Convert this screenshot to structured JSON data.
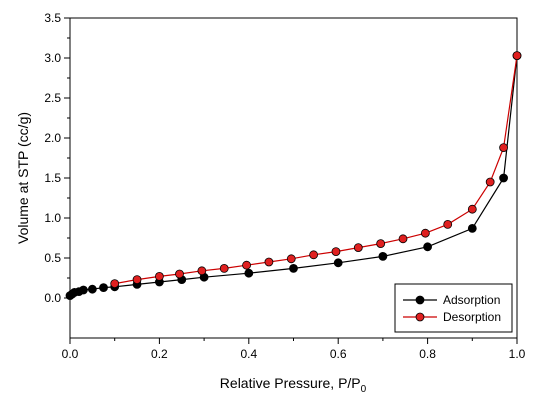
{
  "chart_data": {
    "type": "line",
    "title": "",
    "xlabel": "Relative Pressure, P/P",
    "xlabel_subscript": "0",
    "ylabel": "Volume at STP (cc/g)",
    "xlim": [
      0.0,
      1.0
    ],
    "ylim": [
      -0.5,
      3.5
    ],
    "x_ticks": [
      0.0,
      0.2,
      0.4,
      0.6,
      0.8,
      1.0
    ],
    "x_tick_labels": [
      "0.0",
      "0.2",
      "0.4",
      "0.6",
      "0.8",
      "1.0"
    ],
    "y_ticks": [
      0.0,
      0.5,
      1.0,
      1.5,
      2.0,
      2.5,
      3.0,
      3.5
    ],
    "y_tick_labels": [
      "0.0",
      "0.5",
      "1.0",
      "1.5",
      "2.0",
      "2.5",
      "3.0",
      "3.5"
    ],
    "grid": false,
    "legend_position": "bottom-right",
    "series": [
      {
        "name": "Adsorption",
        "color": "#000000",
        "marker_fill": "#000000",
        "x": [
          0.0,
          0.005,
          0.01,
          0.02,
          0.03,
          0.05,
          0.075,
          0.1,
          0.15,
          0.2,
          0.25,
          0.3,
          0.4,
          0.5,
          0.6,
          0.7,
          0.8,
          0.9,
          0.97,
          1.0
        ],
        "y": [
          0.03,
          0.05,
          0.07,
          0.08,
          0.1,
          0.11,
          0.13,
          0.14,
          0.17,
          0.2,
          0.23,
          0.26,
          0.31,
          0.37,
          0.44,
          0.52,
          0.64,
          0.87,
          1.5,
          3.03
        ]
      },
      {
        "name": "Desorption",
        "color": "#cc0000",
        "marker_fill": "#e02020",
        "x": [
          1.0,
          0.97,
          0.94,
          0.9,
          0.845,
          0.795,
          0.745,
          0.695,
          0.645,
          0.595,
          0.545,
          0.495,
          0.445,
          0.395,
          0.345,
          0.295,
          0.245,
          0.2,
          0.15,
          0.1
        ],
        "y": [
          3.03,
          1.88,
          1.45,
          1.11,
          0.92,
          0.81,
          0.74,
          0.68,
          0.63,
          0.58,
          0.54,
          0.49,
          0.45,
          0.41,
          0.37,
          0.34,
          0.3,
          0.27,
          0.23,
          0.18
        ]
      }
    ]
  }
}
